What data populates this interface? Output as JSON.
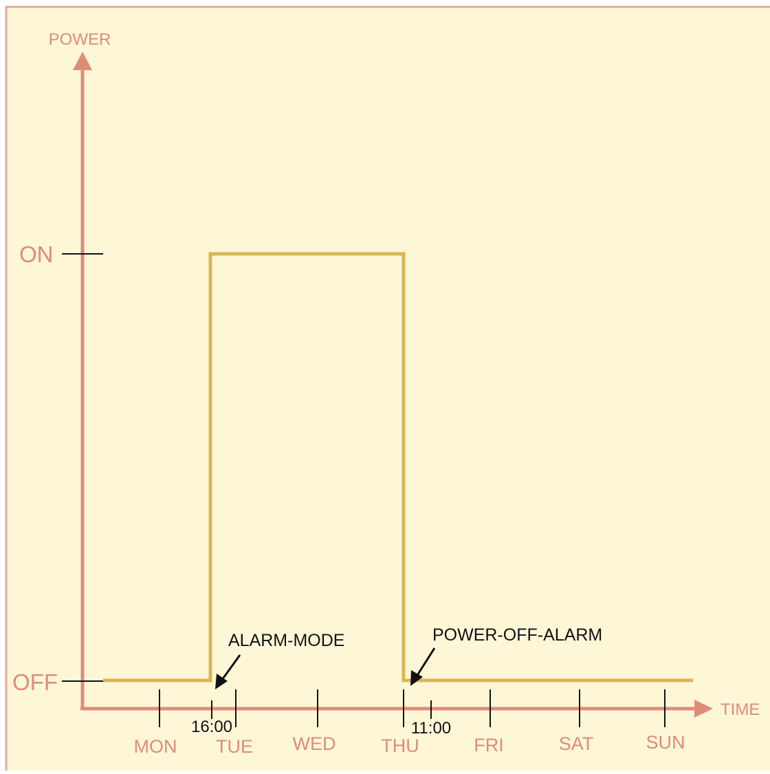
{
  "colors": {
    "background": "#fdf7d8",
    "border": "#e8a79a",
    "axis": "#e08b78",
    "signal": "#d9b655",
    "annotation": "#111111"
  },
  "axes": {
    "y_label": "POWER",
    "x_label": "TIME",
    "levels": [
      {
        "name": "on",
        "label": "ON"
      },
      {
        "name": "off",
        "label": "OFF"
      }
    ],
    "days": [
      "MON",
      "TUE",
      "WED",
      "THU",
      "FRI",
      "SAT",
      "SUN"
    ]
  },
  "annotations": {
    "alarm_mode": "ALARM-MODE",
    "power_off_alarm": "POWER-OFF-ALARM"
  },
  "times": {
    "alarm_time": "16:00",
    "power_off_time": "11:00"
  },
  "signal": {
    "description_free": true,
    "states": [
      {
        "from_day": 0,
        "to_day": 1,
        "level": "OFF"
      },
      {
        "from_day": 1,
        "to_day": 3,
        "level": "ON"
      },
      {
        "from_day": 3,
        "to_day": 7,
        "level": "OFF"
      }
    ]
  }
}
